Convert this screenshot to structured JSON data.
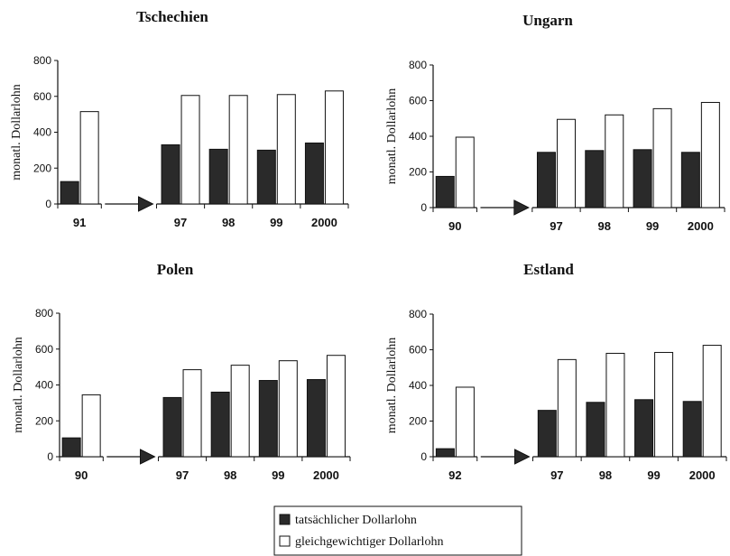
{
  "chart_data": [
    {
      "type": "bar",
      "title": "Tschechien",
      "ylabel": "monatl. Dollarlohn",
      "ylim": [
        0,
        800
      ],
      "yticks": [
        "0",
        "200",
        "400",
        "600",
        "800"
      ],
      "categories": [
        "91",
        "97",
        "98",
        "99",
        "2000"
      ],
      "gap_arrow_after_first": true,
      "series": [
        {
          "name": "tatsächlicher Dollarlohn",
          "values": [
            125,
            330,
            305,
            300,
            340
          ]
        },
        {
          "name": "gleichgewichtiger Dollarlohn",
          "values": [
            515,
            605,
            605,
            610,
            630
          ]
        }
      ]
    },
    {
      "type": "bar",
      "title": "Ungarn",
      "ylabel": "monatl. Dollarlohn",
      "ylim": [
        0,
        800
      ],
      "yticks": [
        "0",
        "200",
        "400",
        "600",
        "800"
      ],
      "categories": [
        "90",
        "97",
        "98",
        "99",
        "2000"
      ],
      "gap_arrow_after_first": true,
      "series": [
        {
          "name": "tatsächlicher Dollarlohn",
          "values": [
            175,
            310,
            320,
            325,
            310
          ]
        },
        {
          "name": "gleichgewichtiger Dollarlohn",
          "values": [
            395,
            495,
            520,
            555,
            590
          ]
        }
      ]
    },
    {
      "type": "bar",
      "title": "Polen",
      "ylabel": "monatl. Dollarlohn",
      "ylim": [
        0,
        800
      ],
      "yticks": [
        "0",
        "200",
        "400",
        "600",
        "800"
      ],
      "categories": [
        "90",
        "97",
        "98",
        "99",
        "2000"
      ],
      "gap_arrow_after_first": true,
      "series": [
        {
          "name": "tatsächlicher Dollarlohn",
          "values": [
            105,
            330,
            360,
            425,
            430
          ]
        },
        {
          "name": "gleichgewichtiger Dollarlohn",
          "values": [
            345,
            485,
            510,
            535,
            565
          ]
        }
      ]
    },
    {
      "type": "bar",
      "title": "Estland",
      "ylabel": "monatl. Dollarlohn",
      "ylim": [
        0,
        800
      ],
      "yticks": [
        "0",
        "200",
        "400",
        "600",
        "800"
      ],
      "categories": [
        "92",
        "97",
        "98",
        "99",
        "2000"
      ],
      "gap_arrow_after_first": true,
      "series": [
        {
          "name": "tatsächlicher Dollarlohn",
          "values": [
            45,
            260,
            305,
            320,
            310
          ]
        },
        {
          "name": "gleichgewichtiger Dollarlohn",
          "values": [
            390,
            545,
            580,
            585,
            625
          ]
        }
      ]
    }
  ],
  "legend": {
    "items": [
      {
        "label": "tatsächlicher Dollarlohn",
        "color": "#2a2a2a"
      },
      {
        "label": "gleichgewichtiger Dollarlohn",
        "color": "#ffffff"
      }
    ]
  },
  "colors": {
    "actual": "#2a2a2a",
    "equilibrium": "#ffffff",
    "stroke": "#111111"
  }
}
